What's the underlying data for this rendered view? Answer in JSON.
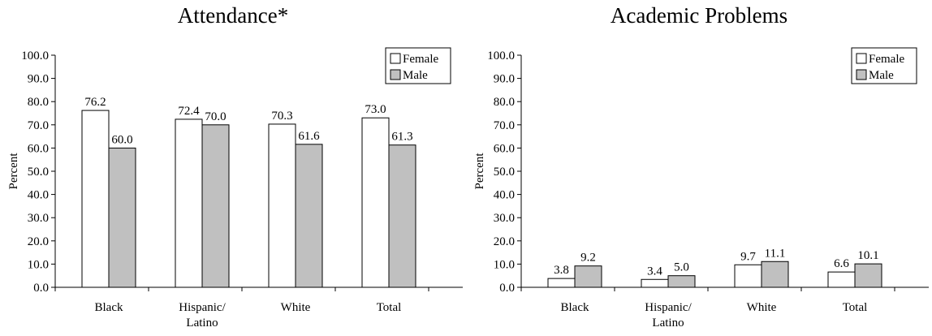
{
  "chart_data": [
    {
      "type": "bar",
      "title": "Attendance*",
      "ylabel": "Percent",
      "xlabel": "",
      "ylim": [
        0,
        100
      ],
      "ytick_labels": [
        "0.0",
        "10.0",
        "20.0",
        "30.0",
        "40.0",
        "50.0",
        "60.0",
        "70.0",
        "80.0",
        "90.0",
        "100.0"
      ],
      "categories": [
        "Black",
        "Hispanic/\nLatino",
        "White",
        "Total"
      ],
      "series": [
        {
          "name": "Female",
          "values": [
            76.2,
            72.4,
            70.3,
            73.0
          ],
          "labels": [
            "76.2",
            "72.4",
            "70.3",
            "73.0"
          ],
          "color": "#ffffff"
        },
        {
          "name": "Male",
          "values": [
            60.0,
            70.0,
            61.6,
            61.3
          ],
          "labels": [
            "60.0",
            "70.0",
            "61.6",
            "61.3"
          ],
          "color": "#c0c0c0"
        }
      ],
      "legend": "top-right",
      "grid": false
    },
    {
      "type": "bar",
      "title": "Academic Problems",
      "ylabel": "Percent",
      "xlabel": "",
      "ylim": [
        0,
        100
      ],
      "ytick_labels": [
        "0.0",
        "10.0",
        "20.0",
        "30.0",
        "40.0",
        "50.0",
        "60.0",
        "70.0",
        "80.0",
        "90.0",
        "100.0"
      ],
      "categories": [
        "Black",
        "Hispanic/\nLatino",
        "White",
        "Total"
      ],
      "series": [
        {
          "name": "Female",
          "values": [
            3.8,
            3.4,
            9.7,
            6.6
          ],
          "labels": [
            "3.8",
            "3.4",
            "9.7",
            "6.6"
          ],
          "color": "#ffffff"
        },
        {
          "name": "Male",
          "values": [
            9.2,
            5.0,
            11.1,
            10.1
          ],
          "labels": [
            "9.2",
            "5.0",
            "11.1",
            "10.1"
          ],
          "color": "#c0c0c0"
        }
      ],
      "legend": "top-right",
      "grid": false
    }
  ]
}
